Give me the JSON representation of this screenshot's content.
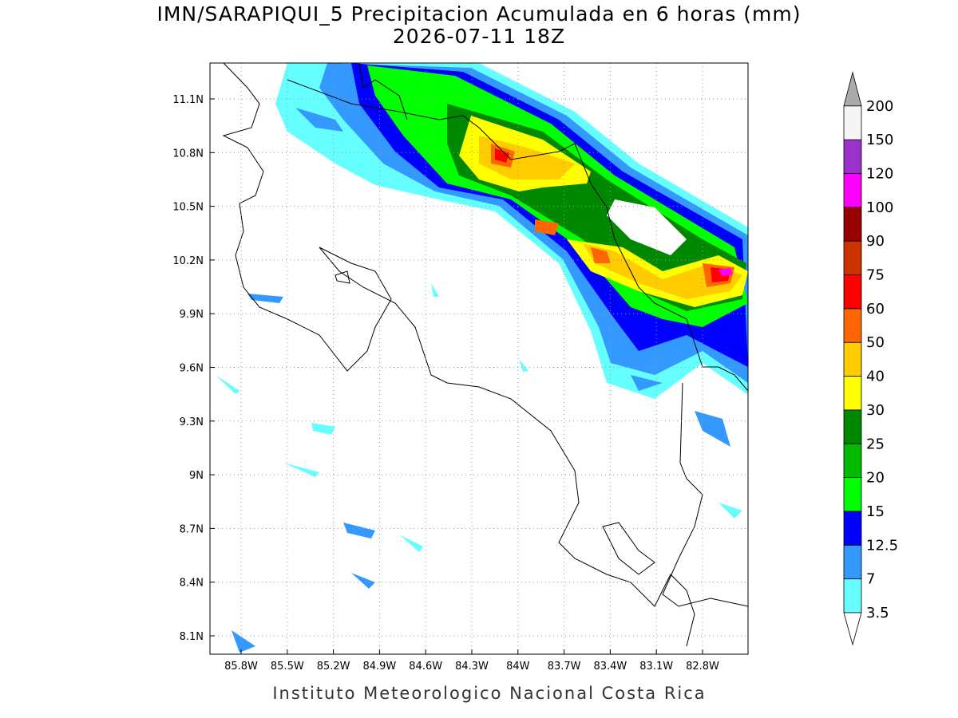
{
  "map": {
    "title": "IMN/SARAPIQUI_5 Precipitacion Acumulada en 6 horas (mm)",
    "subtitle": "2026-07-11 18Z",
    "footer": "Instituto Meteorologico Nacional Costa Rica",
    "lon_ticks": [
      "85.8W",
      "85.5W",
      "85.2W",
      "84.9W",
      "84.6W",
      "84.3W",
      "84W",
      "83.7W",
      "83.4W",
      "83.1W",
      "82.8W"
    ],
    "lat_ticks": [
      "11.1N",
      "10.8N",
      "10.5N",
      "10.2N",
      "9.9N",
      "9.6N",
      "9.3N",
      "9N",
      "8.7N",
      "8.4N",
      "8.1N"
    ],
    "colorbar": {
      "levels": [
        3.5,
        7,
        12.5,
        15,
        20,
        25,
        30,
        40,
        50,
        60,
        75,
        90,
        100,
        120,
        150,
        200
      ],
      "colors": [
        "#66ffff",
        "#3399ff",
        "#0000ff",
        "#00ff00",
        "#00bb00",
        "#008800",
        "#ffff00",
        "#ffcc00",
        "#ff6600",
        "#ff0000",
        "#cc3300",
        "#990000",
        "#ff00ff",
        "#9933cc",
        "#f5f5f5"
      ],
      "over_color": "#aaaaaa",
      "under_color": "#ffffff"
    }
  }
}
